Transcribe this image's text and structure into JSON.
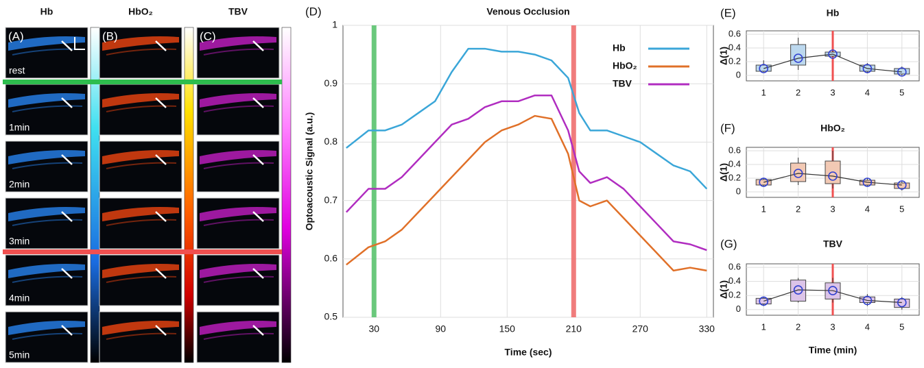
{
  "image_panels": {
    "columns": [
      "Hb",
      "HbO₂",
      "TBV"
    ],
    "panel_labels": [
      "(A)",
      "(B)",
      "(C)"
    ],
    "rows": [
      "rest",
      "1min",
      "2min",
      "3min",
      "4min",
      "5min"
    ]
  },
  "chart_data": [
    {
      "type": "line",
      "panel_label": "(D)",
      "title": "Venous Occlusion",
      "xlabel": "Time (sec)",
      "ylabel": "Optoacoustic Signal (a.u.)",
      "x": [
        5,
        25,
        40,
        55,
        70,
        85,
        100,
        115,
        130,
        145,
        160,
        175,
        190,
        205,
        215,
        225,
        240,
        255,
        270,
        285,
        300,
        315,
        330
      ],
      "series": [
        {
          "name": "Hb",
          "color": "#3aa6d8",
          "values": [
            0.79,
            0.82,
            0.82,
            0.83,
            0.85,
            0.87,
            0.92,
            0.96,
            0.96,
            0.955,
            0.955,
            0.95,
            0.94,
            0.91,
            0.85,
            0.82,
            0.82,
            0.81,
            0.8,
            0.78,
            0.76,
            0.75,
            0.72
          ]
        },
        {
          "name": "HbO₂",
          "color": "#e07028",
          "values": [
            0.59,
            0.62,
            0.63,
            0.65,
            0.68,
            0.71,
            0.74,
            0.77,
            0.8,
            0.82,
            0.83,
            0.845,
            0.84,
            0.78,
            0.7,
            0.69,
            0.7,
            0.67,
            0.64,
            0.61,
            0.58,
            0.585,
            0.58
          ]
        },
        {
          "name": "TBV",
          "color": "#b02cc0",
          "values": [
            0.68,
            0.72,
            0.72,
            0.74,
            0.77,
            0.8,
            0.83,
            0.84,
            0.86,
            0.87,
            0.87,
            0.88,
            0.88,
            0.82,
            0.75,
            0.73,
            0.74,
            0.72,
            0.69,
            0.66,
            0.63,
            0.625,
            0.615
          ]
        }
      ],
      "vlines": [
        {
          "value": 30,
          "color": "#5cc470"
        },
        {
          "value": 210,
          "color": "#f07070"
        }
      ],
      "xlim": [
        2,
        336
      ],
      "ylim": [
        0.5,
        1
      ],
      "xticks": [
        30,
        90,
        150,
        210,
        270,
        330
      ],
      "yticks": [
        0.5,
        0.6,
        0.7,
        0.8,
        0.9,
        1
      ],
      "grid": true,
      "legend": "upper right"
    },
    {
      "type": "box",
      "panel_label": "(E)",
      "title": "Hb",
      "ylabel": "Δ(1)",
      "color": "#bcd8ee",
      "x": [
        1,
        2,
        3,
        4,
        5
      ],
      "low": [
        0.05,
        0.08,
        0.27,
        0.03,
        0
      ],
      "q1": [
        0.06,
        0.15,
        0.28,
        0.06,
        0.02
      ],
      "q3": [
        0.15,
        0.45,
        0.34,
        0.15,
        0.1
      ],
      "high": [
        0.22,
        0.55,
        0.36,
        0.18,
        0.13
      ],
      "mean": [
        0.1,
        0.25,
        0.31,
        0.1,
        0.05
      ],
      "vline": 3,
      "xlim": [
        0.5,
        5.5
      ],
      "ylim": [
        -0.08,
        0.65
      ],
      "xticks": [
        1,
        2,
        3,
        4,
        5
      ],
      "yticks": [
        0,
        0.2,
        0.4,
        0.6
      ],
      "grid": true
    },
    {
      "type": "box",
      "panel_label": "(F)",
      "title": "HbO₂",
      "ylabel": "Δ(1)",
      "color": "#f2c9b4",
      "x": [
        1,
        2,
        3,
        4,
        5
      ],
      "low": [
        0.08,
        0.1,
        0.05,
        0.08,
        0.02
      ],
      "q1": [
        0.1,
        0.15,
        0.12,
        0.1,
        0.05
      ],
      "q3": [
        0.18,
        0.42,
        0.45,
        0.17,
        0.13
      ],
      "high": [
        0.2,
        0.5,
        0.6,
        0.2,
        0.16
      ],
      "mean": [
        0.14,
        0.27,
        0.23,
        0.14,
        0.1
      ],
      "vline": 3,
      "xlim": [
        0.5,
        5.5
      ],
      "ylim": [
        -0.08,
        0.65
      ],
      "xticks": [
        1,
        2,
        3,
        4,
        5
      ],
      "yticks": [
        0,
        0.2,
        0.4,
        0.6
      ],
      "grid": true
    },
    {
      "type": "box",
      "panel_label": "(G)",
      "title": "TBV",
      "ylabel": "Δ(1)",
      "xlabel": "Time (min)",
      "color": "#dcc4e8",
      "x": [
        1,
        2,
        3,
        4,
        5
      ],
      "low": [
        0.05,
        0.1,
        0.1,
        0.05,
        0
      ],
      "q1": [
        0.08,
        0.12,
        0.15,
        0.1,
        0.03
      ],
      "q3": [
        0.16,
        0.42,
        0.38,
        0.18,
        0.15
      ],
      "high": [
        0.18,
        0.45,
        0.45,
        0.22,
        0.18
      ],
      "mean": [
        0.12,
        0.28,
        0.27,
        0.13,
        0.1
      ],
      "vline": 3,
      "xlim": [
        0.5,
        5.5
      ],
      "ylim": [
        -0.08,
        0.65
      ],
      "xticks": [
        1,
        2,
        3,
        4,
        5
      ],
      "yticks": [
        0,
        0.2,
        0.4,
        0.6
      ],
      "grid": true
    }
  ]
}
